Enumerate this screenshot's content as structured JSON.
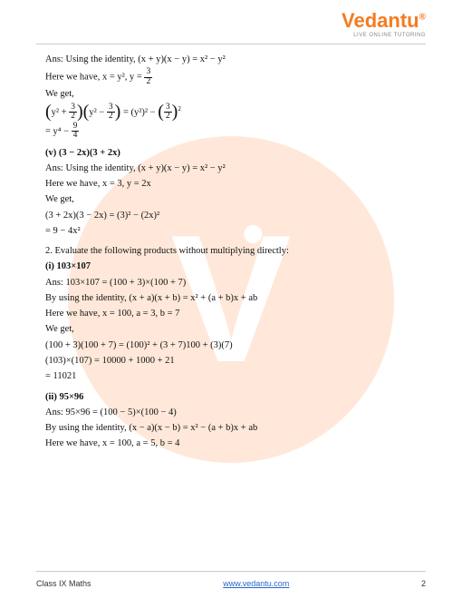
{
  "header": {
    "logo_text": "Vedantu",
    "tagline": "LIVE ONLINE TUTORING"
  },
  "watermark": {
    "bg_color": "#ffe8d9",
    "letter": "V"
  },
  "body": {
    "s1_l1": "Ans: Using the identity, (x + y)(x − y) = x² − y²",
    "s1_l2_a": "Here we have,  x = y², y = ",
    "s1_l3": "We get,",
    "s1_l4_eq": " = (y²)² − ",
    "s1_l5_a": "= y⁴ − ",
    "s2_head": "(v)  (3 − 2x)(3 + 2x)",
    "s2_l1": "Ans: Using the identity, (x + y)(x − y) = x² − y²",
    "s2_l2": "Here we have,  x = 3, y = 2x",
    "s2_l3": "We get,",
    "s2_l4": "(3 + 2x)(3 − 2x) = (3)² − (2x)²",
    "s2_l5": "= 9 − 4x²",
    "q2_head": "2. Evaluate the following products without multiplying directly:",
    "q2i_head": "(i)  103×107",
    "q2i_l1": "Ans: 103×107 = (100 + 3)×(100 + 7)",
    "q2i_l2": "By using the identity, (x + a)(x + b) = x² + (a + b)x + ab",
    "q2i_l3": "Here we have,  x = 100,  a = 3,  b = 7",
    "q2i_l4": "We get,",
    "q2i_l5": "(100 + 3)(100 + 7) = (100)² + (3 + 7)100 + (3)(7)",
    "q2i_l6": "(103)×(107) = 10000 + 1000 + 21",
    "q2i_l7": "= 11021",
    "q2ii_head": "(ii)  95×96",
    "q2ii_l1": "Ans:  95×96 = (100 − 5)×(100 − 4)",
    "q2ii_l2": "By using the identity, (x − a)(x − b) = x² − (a + b)x + ab",
    "q2ii_l3": "Here we have,  x = 100,  a = 5,  b = 4"
  },
  "footer": {
    "left": "Class IX Maths",
    "center": "www.vedantu.com",
    "page": "2"
  },
  "colors": {
    "accent": "#f47c20",
    "link": "#2968c8",
    "text": "#111111",
    "hr": "#cccccc"
  }
}
